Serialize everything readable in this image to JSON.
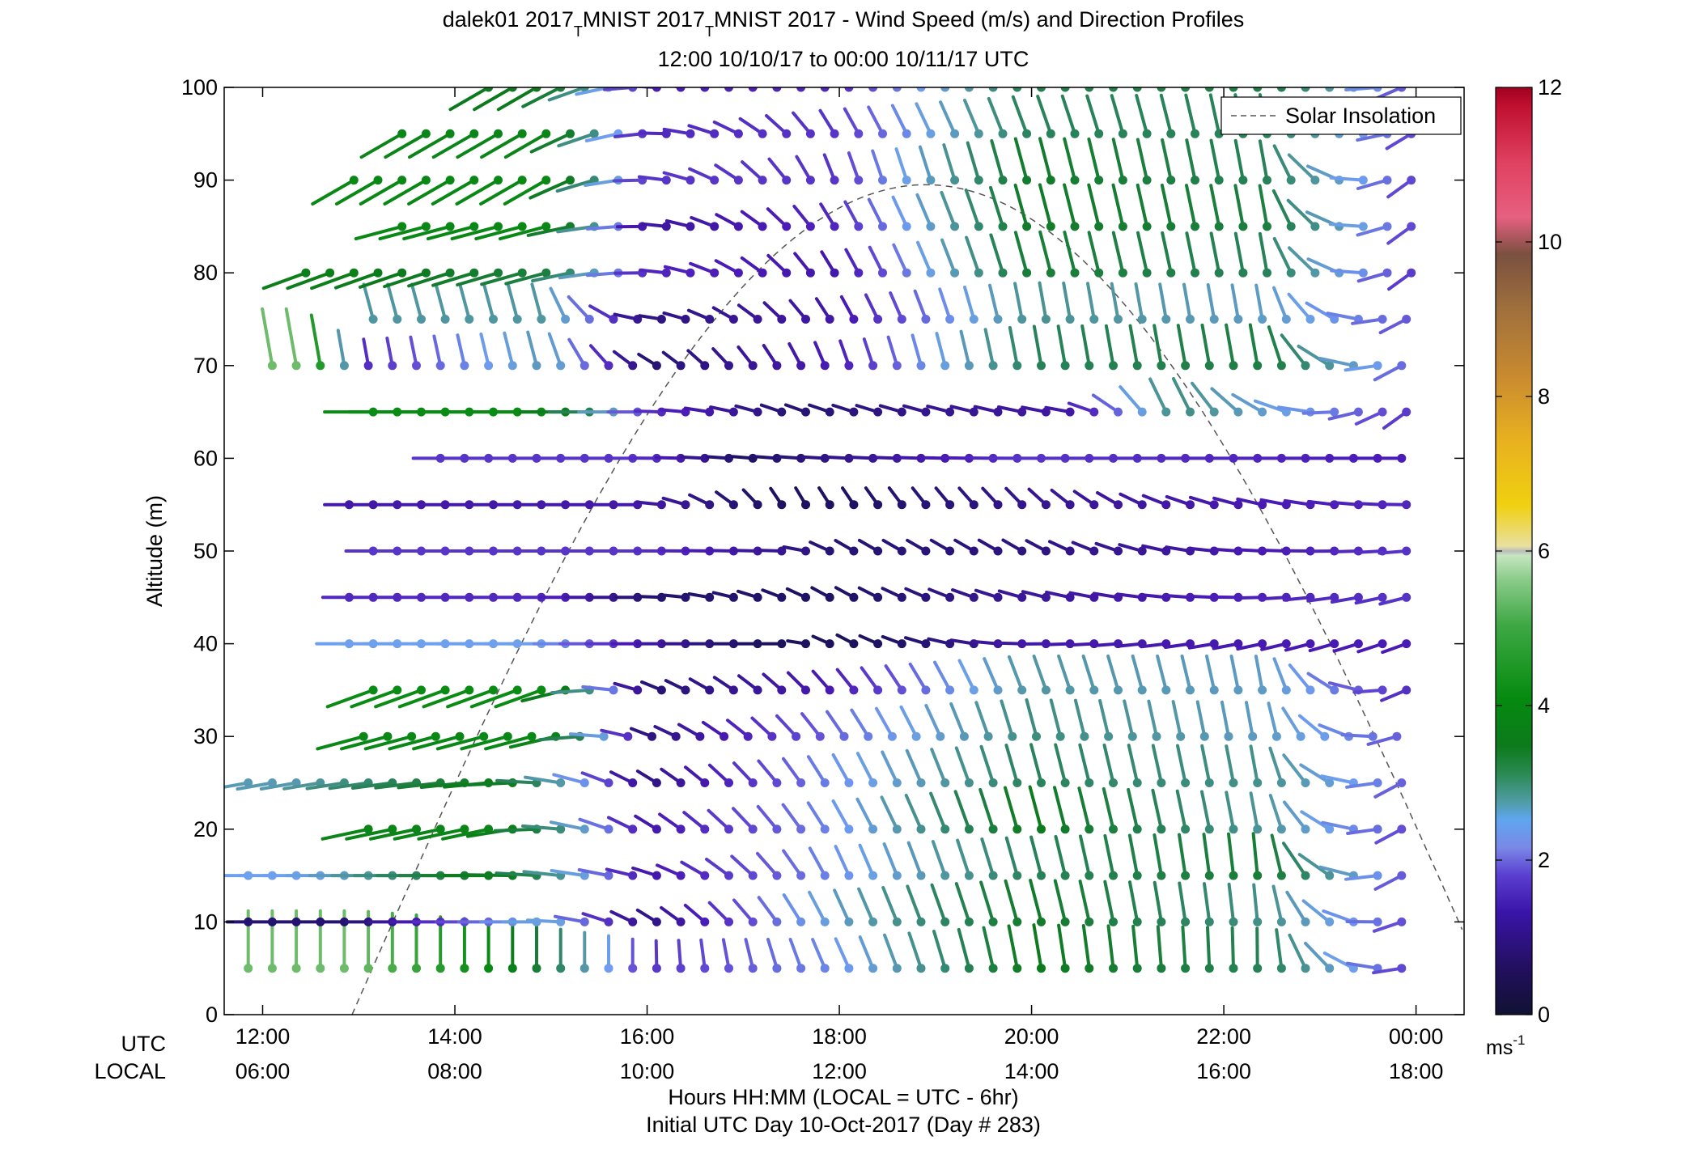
{
  "chart_data": {
    "type": "wind_profile",
    "title_line1": "dalek01 2017",
    "title_sub1": "T",
    "title_mid": "MNIST 2017",
    "title_sub2": "T",
    "title_tail": "MNIST 2017 - Wind Speed (m/s) and Direction Profiles",
    "subtitle": "12:00 10/10/17 to 00:00 10/11/17  UTC",
    "ylabel": "Altitude (m)",
    "xlabel_line1": "Hours HH:MM  (LOCAL = UTC - 6hr)",
    "xlabel_line2": "Initial UTC Day 10-Oct-2017 (Day # 283)",
    "utc_row_label": "UTC",
    "local_row_label": "LOCAL",
    "x_ticks_utc": [
      "12:00",
      "14:00",
      "16:00",
      "18:00",
      "20:00",
      "22:00",
      "00:00"
    ],
    "x_ticks_local": [
      "06:00",
      "08:00",
      "10:00",
      "12:00",
      "14:00",
      "16:00",
      "18:00"
    ],
    "x_tick_hours": [
      12,
      14,
      16,
      18,
      20,
      22,
      24
    ],
    "xlim": [
      11.6,
      24.5
    ],
    "y_ticks": [
      "0",
      "10",
      "20",
      "30",
      "40",
      "50",
      "60",
      "70",
      "80",
      "90",
      "100"
    ],
    "ylim": [
      0,
      100
    ],
    "legend": "Solar Insolation",
    "legend_location": "top-right",
    "colorbar_ticks": [
      "0",
      "2",
      "4",
      "6",
      "8",
      "10",
      "12"
    ],
    "colorbar_unit": "ms",
    "colorbar_unit_sup": "-1",
    "colorbar_range": [
      0,
      12
    ],
    "solar_insolation": {
      "sunrise_hour": 12.93,
      "peak_hour": 18.9,
      "peak_altitude": 89.5,
      "shape": "sine"
    },
    "altitudes": [
      5,
      10,
      15,
      20,
      25,
      30,
      35,
      40,
      45,
      50,
      55,
      60,
      65,
      70,
      75,
      80,
      85,
      90,
      95,
      100
    ],
    "time_step_minutes": 15,
    "rows": [
      {
        "alt": 5,
        "start": 11.85,
        "end": 24.0,
        "segments": [
          [
            13.0,
            0.0,
            5.0
          ],
          [
            14.5,
            0.0,
            3.8
          ],
          [
            16.0,
            0.0,
            1.6
          ],
          [
            18.0,
            335.0,
            2.1
          ],
          [
            20.0,
            350.0,
            3.5
          ],
          [
            22.5,
            0.0,
            3.0
          ],
          [
            24.0,
            250.0,
            1.6
          ]
        ]
      },
      {
        "alt": 10,
        "start": 11.85,
        "end": 24.0,
        "segments": [
          [
            13.0,
            270.0,
            0.9
          ],
          [
            15.0,
            270.0,
            2.4
          ],
          [
            16.0,
            300.0,
            1.0
          ],
          [
            18.0,
            335.0,
            2.4
          ],
          [
            20.0,
            345.0,
            3.4
          ],
          [
            22.5,
            355.0,
            2.7
          ],
          [
            24.0,
            240.0,
            1.7
          ]
        ]
      },
      {
        "alt": 15,
        "start": 11.85,
        "end": 24.0,
        "segments": [
          [
            12.5,
            270.0,
            2.2
          ],
          [
            14.5,
            270.0,
            3.6
          ],
          [
            16.0,
            285.0,
            1.3
          ],
          [
            18.0,
            335.0,
            2.1
          ],
          [
            20.0,
            345.0,
            3.0
          ],
          [
            22.5,
            355.0,
            3.3
          ],
          [
            24.0,
            230.0,
            1.7
          ]
        ]
      },
      {
        "alt": 20,
        "start": 13.1,
        "end": 24.0,
        "segments": [
          [
            14.5,
            258.0,
            3.8
          ],
          [
            16.0,
            300.0,
            1.3
          ],
          [
            18.0,
            330.0,
            2.1
          ],
          [
            20.0,
            345.0,
            3.5
          ],
          [
            22.5,
            350.0,
            2.6
          ],
          [
            24.0,
            230.0,
            1.7
          ]
        ]
      },
      {
        "alt": 25,
        "start": 11.85,
        "end": 24.0,
        "segments": [
          [
            12.3,
            260.0,
            2.5
          ],
          [
            14.5,
            265.0,
            3.6
          ],
          [
            16.0,
            300.0,
            1.0
          ],
          [
            18.0,
            330.0,
            2.1
          ],
          [
            20.0,
            345.0,
            3.0
          ],
          [
            22.5,
            350.0,
            2.7
          ],
          [
            24.0,
            230.0,
            1.8
          ]
        ]
      },
      {
        "alt": 30,
        "start": 13.05,
        "end": 24.0,
        "segments": [
          [
            15.0,
            255.0,
            3.9
          ],
          [
            16.0,
            290.0,
            1.0
          ],
          [
            18.0,
            325.0,
            1.9
          ],
          [
            20.0,
            345.0,
            2.8
          ],
          [
            22.5,
            350.0,
            2.4
          ],
          [
            24.0,
            240.0,
            1.8
          ]
        ]
      },
      {
        "alt": 35,
        "start": 13.15,
        "end": 24.0,
        "segments": [
          [
            15.0,
            250.0,
            4.0
          ],
          [
            16.0,
            290.0,
            0.9
          ],
          [
            18.0,
            320.0,
            1.4
          ],
          [
            20.0,
            340.0,
            2.6
          ],
          [
            22.5,
            350.0,
            2.4
          ],
          [
            24.0,
            240.0,
            1.5
          ]
        ]
      },
      {
        "alt": 40,
        "start": 12.9,
        "end": 24.0,
        "segments": [
          [
            15.0,
            270.0,
            2.2
          ],
          [
            16.0,
            270.0,
            1.3
          ],
          [
            17.5,
            270.0,
            0.6
          ],
          [
            18.0,
            300.0,
            0.6
          ],
          [
            20.0,
            270.0,
            1.3
          ],
          [
            24.0,
            250.0,
            1.4
          ]
        ]
      },
      {
        "alt": 45,
        "start": 12.9,
        "end": 24.0,
        "segments": [
          [
            15.0,
            270.0,
            1.5
          ],
          [
            16.0,
            270.0,
            0.9
          ],
          [
            18.0,
            300.0,
            0.8
          ],
          [
            20.0,
            285.0,
            1.2
          ],
          [
            22.0,
            272.0,
            1.4
          ],
          [
            24.0,
            255.0,
            1.6
          ]
        ]
      },
      {
        "alt": 50,
        "start": 13.15,
        "end": 24.0,
        "segments": [
          [
            16.0,
            270.0,
            1.6
          ],
          [
            17.5,
            272.0,
            1.1
          ],
          [
            18.0,
            300.0,
            0.9
          ],
          [
            20.0,
            300.0,
            1.0
          ],
          [
            22.0,
            275.0,
            1.3
          ],
          [
            24.0,
            265.0,
            1.6
          ]
        ]
      },
      {
        "alt": 55,
        "start": 12.9,
        "end": 24.0,
        "segments": [
          [
            16.0,
            270.0,
            1.3
          ],
          [
            17.5,
            330.0,
            0.7
          ],
          [
            20.0,
            315.0,
            1.1
          ],
          [
            21.5,
            290.0,
            1.3
          ],
          [
            24.0,
            270.0,
            1.5
          ]
        ]
      },
      {
        "alt": 60,
        "start": 13.85,
        "end": 24.0,
        "segments": [
          [
            16.0,
            270.0,
            1.6
          ],
          [
            17.0,
            275.0,
            0.8
          ],
          [
            20.0,
            270.0,
            1.6
          ],
          [
            24.0,
            270.0,
            1.4
          ]
        ]
      },
      {
        "alt": 65,
        "start": 13.15,
        "end": 24.0,
        "segments": [
          [
            15.0,
            270.0,
            4.0
          ],
          [
            16.0,
            270.0,
            1.6
          ],
          [
            17.5,
            290.0,
            0.9
          ],
          [
            20.5,
            280.0,
            1.3
          ],
          [
            21.5,
            340.0,
            2.8
          ],
          [
            24.0,
            230.0,
            1.6
          ]
        ]
      },
      {
        "alt": 70,
        "start": 12.1,
        "end": 24.0,
        "segments": [
          [
            12.5,
            350.0,
            5.0
          ],
          [
            13.0,
            350.0,
            1.5
          ],
          [
            15.0,
            345.0,
            2.5
          ],
          [
            16.0,
            300.0,
            0.9
          ],
          [
            18.0,
            340.0,
            1.4
          ],
          [
            20.0,
            350.0,
            3.0
          ],
          [
            22.5,
            350.0,
            3.2
          ],
          [
            24.0,
            230.0,
            1.8
          ]
        ]
      },
      {
        "alt": 75,
        "start": 13.15,
        "end": 24.0,
        "segments": [
          [
            15.0,
            345.0,
            2.6
          ],
          [
            16.0,
            275.0,
            1.0
          ],
          [
            18.0,
            330.0,
            1.3
          ],
          [
            20.0,
            350.0,
            2.7
          ],
          [
            22.5,
            350.0,
            2.4
          ],
          [
            24.0,
            235.0,
            1.8
          ]
        ]
      },
      {
        "alt": 80,
        "start": 12.45,
        "end": 24.0,
        "segments": [
          [
            13.0,
            250.0,
            3.6
          ],
          [
            15.0,
            255.0,
            3.2
          ],
          [
            16.0,
            270.0,
            1.5
          ],
          [
            18.0,
            330.0,
            1.3
          ],
          [
            20.0,
            345.0,
            3.3
          ],
          [
            22.5,
            350.0,
            3.0
          ],
          [
            24.0,
            230.0,
            1.6
          ]
        ]
      },
      {
        "alt": 85,
        "start": 13.45,
        "end": 24.0,
        "segments": [
          [
            15.0,
            255.0,
            3.9
          ],
          [
            16.0,
            270.0,
            1.2
          ],
          [
            18.0,
            330.0,
            1.5
          ],
          [
            20.0,
            345.0,
            3.4
          ],
          [
            22.5,
            350.0,
            3.2
          ],
          [
            24.0,
            230.0,
            1.7
          ]
        ]
      },
      {
        "alt": 90,
        "start": 12.95,
        "end": 24.0,
        "segments": [
          [
            15.0,
            240.0,
            3.9
          ],
          [
            16.0,
            270.0,
            1.6
          ],
          [
            18.0,
            340.0,
            1.6
          ],
          [
            20.0,
            345.0,
            3.4
          ],
          [
            22.5,
            350.0,
            3.0
          ],
          [
            24.0,
            230.0,
            1.7
          ]
        ]
      },
      {
        "alt": 95,
        "start": 13.45,
        "end": 24.0,
        "segments": [
          [
            15.0,
            240.0,
            3.8
          ],
          [
            16.0,
            265.0,
            1.5
          ],
          [
            18.0,
            330.0,
            1.6
          ],
          [
            20.0,
            340.0,
            3.0
          ],
          [
            22.5,
            350.0,
            3.0
          ],
          [
            24.0,
            235.0,
            1.7
          ]
        ]
      },
      {
        "alt": 100,
        "start": 14.35,
        "end": 24.0,
        "segments": [
          [
            15.0,
            240.0,
            3.5
          ],
          [
            16.0,
            270.0,
            1.4
          ],
          [
            18.0,
            330.0,
            1.5
          ],
          [
            20.0,
            340.0,
            3.1
          ],
          [
            22.5,
            350.0,
            3.2
          ],
          [
            24.0,
            235.0,
            1.7
          ]
        ]
      }
    ]
  }
}
